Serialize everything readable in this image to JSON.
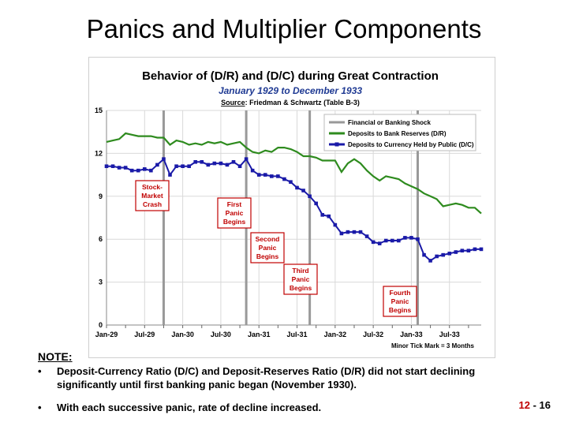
{
  "slide": {
    "title": "Panics and Multiplier Components",
    "note_label": "NOTE",
    "bullets": [
      "Deposit-Currency Ratio (D/C) and Deposit-Reserves Ratio (D/R) did not start declining significantly until first banking panic began (November 1930).",
      "With each successive panic, rate of decline increased."
    ],
    "slide_number_chapter": "12",
    "slide_number_sep": " - ",
    "slide_number_page": "16"
  },
  "chart_data": {
    "type": "line",
    "title": "Behavior of (D/R) and (D/C) during Great Contraction",
    "subtitle": "January 1929 to December 1933",
    "source_prefix": "Source",
    "source_text": ": Friedman & Schwartz (Table B-3)",
    "ylim": [
      0,
      15
    ],
    "yticks": [
      "0",
      "3",
      "6",
      "9",
      "12",
      "15"
    ],
    "xlim": [
      0,
      59
    ],
    "xticks": [
      {
        "m": 0,
        "label": "Jan-29"
      },
      {
        "m": 6,
        "label": "Jul-29"
      },
      {
        "m": 12,
        "label": "Jan-30"
      },
      {
        "m": 18,
        "label": "Jul-30"
      },
      {
        "m": 24,
        "label": "Jan-31"
      },
      {
        "m": 30,
        "label": "Jul-31"
      },
      {
        "m": 36,
        "label": "Jan-32"
      },
      {
        "m": 42,
        "label": "Jul-32"
      },
      {
        "m": 48,
        "label": "Jan-33"
      },
      {
        "m": 54,
        "label": "Jul-33"
      }
    ],
    "minor_tick_note": "Minor Tick Mark = 3 Months",
    "legend": [
      {
        "name": "Financial or Banking Shock",
        "color": "#999999"
      },
      {
        "name": "Deposits to Bank Reserves (D/R)",
        "color": "#2e8b1e"
      },
      {
        "name": "Deposits to Currency Held by Public (D/C)",
        "color": "#1a1aa8"
      }
    ],
    "shocks": [
      9,
      22,
      32,
      49
    ],
    "annotations": [
      {
        "lines": [
          "Stock-",
          "Market",
          "Crash"
        ]
      },
      {
        "lines": [
          "First",
          "Panic",
          "Begins"
        ]
      },
      {
        "lines": [
          "Second",
          "Panic",
          "Begins"
        ]
      },
      {
        "lines": [
          "Third",
          "Panic",
          "Begins"
        ]
      },
      {
        "lines": [
          "Fourth",
          "Panic",
          "Begins"
        ]
      }
    ],
    "series": [
      {
        "name": "Deposits to Bank Reserves (D/R)",
        "color": "#2e8b1e",
        "values": [
          12.8,
          12.9,
          13.0,
          13.4,
          13.3,
          13.2,
          13.2,
          13.2,
          13.1,
          13.1,
          12.6,
          12.9,
          12.8,
          12.6,
          12.7,
          12.6,
          12.8,
          12.7,
          12.8,
          12.6,
          12.7,
          12.8,
          12.4,
          12.1,
          12.0,
          12.2,
          12.1,
          12.4,
          12.4,
          12.3,
          12.1,
          11.8,
          11.8,
          11.7,
          11.5,
          11.5,
          11.5,
          10.7,
          11.3,
          11.6,
          11.3,
          10.8,
          10.4,
          10.1,
          10.4,
          10.3,
          10.2,
          9.9,
          9.7,
          9.5,
          9.2,
          9.0,
          8.8,
          8.3,
          8.4,
          8.5,
          8.4,
          8.2,
          8.2,
          7.8
        ]
      },
      {
        "name": "Deposits to Currency Held by Public (D/C)",
        "color": "#1a1aa8",
        "values": [
          11.1,
          11.1,
          11.0,
          11.0,
          10.8,
          10.8,
          10.9,
          10.8,
          11.2,
          11.6,
          10.5,
          11.1,
          11.1,
          11.1,
          11.4,
          11.4,
          11.2,
          11.3,
          11.3,
          11.2,
          11.4,
          11.1,
          11.6,
          10.8,
          10.5,
          10.5,
          10.4,
          10.4,
          10.2,
          10.0,
          9.6,
          9.4,
          9.0,
          8.5,
          7.7,
          7.6,
          7.0,
          6.4,
          6.5,
          6.5,
          6.5,
          6.2,
          5.8,
          5.7,
          5.9,
          5.9,
          5.9,
          6.1,
          6.1,
          6.0,
          4.9,
          4.5,
          4.8,
          4.9,
          5.0,
          5.1,
          5.2,
          5.2,
          5.3,
          5.3
        ]
      }
    ]
  }
}
